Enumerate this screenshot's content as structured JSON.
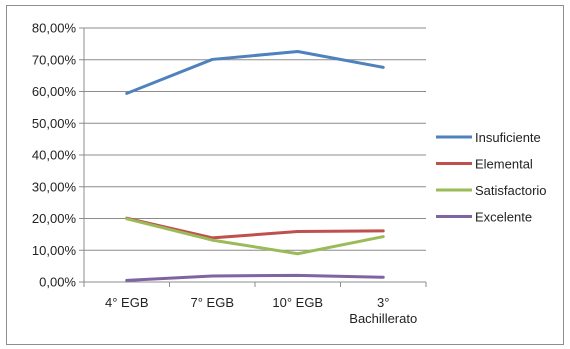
{
  "chart_data": {
    "type": "line",
    "categories": [
      [
        "4° EGB"
      ],
      [
        "7° EGB"
      ],
      [
        "10° EGB"
      ],
      [
        "3°",
        "Bachillerato"
      ]
    ],
    "y_ticks": [
      "0,00%",
      "10,00%",
      "20,00%",
      "30,00%",
      "40,00%",
      "50,00%",
      "60,00%",
      "70,00%",
      "80,00%"
    ],
    "ylim": [
      0,
      80
    ],
    "grid": true,
    "legend_position": "right",
    "series": [
      {
        "name": "Insuficiente",
        "color": "#4f81bd",
        "values": [
          59.4,
          70.1,
          72.6,
          67.6
        ]
      },
      {
        "name": "Elemental",
        "color": "#c0504d",
        "values": [
          20.1,
          13.9,
          15.9,
          16.1
        ]
      },
      {
        "name": "Satisfactorio",
        "color": "#9bbb59",
        "values": [
          19.9,
          13.2,
          8.9,
          14.3
        ]
      },
      {
        "name": "Excelente",
        "color": "#8064a2",
        "values": [
          0.5,
          1.9,
          2.1,
          1.5
        ]
      }
    ]
  }
}
